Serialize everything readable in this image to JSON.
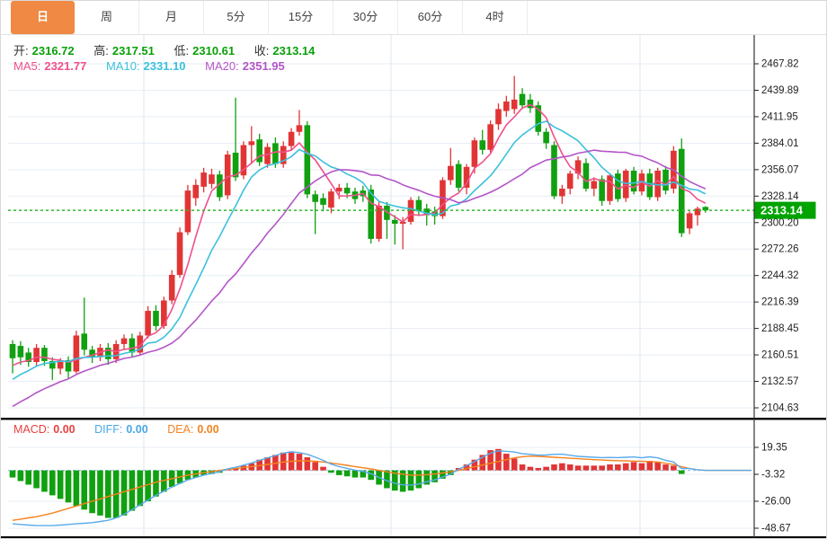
{
  "tabs": [
    {
      "label": "日",
      "active": true
    },
    {
      "label": "周",
      "active": false
    },
    {
      "label": "月",
      "active": false
    },
    {
      "label": "5分",
      "active": false
    },
    {
      "label": "15分",
      "active": false
    },
    {
      "label": "30分",
      "active": false
    },
    {
      "label": "60分",
      "active": false
    },
    {
      "label": "4时",
      "active": false
    }
  ],
  "legend": {
    "ohlc": {
      "label_color": "#333333",
      "value_color": "#0aa00a",
      "items": [
        {
          "label": "开:",
          "value": "2316.72"
        },
        {
          "label": "高:",
          "value": "2317.51"
        },
        {
          "label": "低:",
          "value": "2310.61"
        },
        {
          "label": "收:",
          "value": "2313.14"
        }
      ]
    },
    "ma": {
      "items": [
        {
          "label": "MA5:",
          "value": "2321.77",
          "color": "#f0508c"
        },
        {
          "label": "MA10:",
          "value": "2331.10",
          "color": "#3bc0dd"
        },
        {
          "label": "MA20:",
          "value": "2351.95",
          "color": "#b455c8"
        }
      ]
    },
    "macd": {
      "items": [
        {
          "label": "MACD:",
          "value": "0.00",
          "color": "#e84040"
        },
        {
          "label": "DIFF:",
          "value": "0.00",
          "color": "#4aa8e8"
        },
        {
          "label": "DEA:",
          "value": "0.00",
          "color": "#f5821f"
        }
      ]
    }
  },
  "colors": {
    "up": "#e13535",
    "down": "#10a010",
    "ma5": "#f0508c",
    "ma10": "#3bc0dd",
    "ma20": "#b455c8",
    "diff": "#5aabea",
    "dea": "#f5821f",
    "grid": "#e7edf4",
    "grid_vertical": "#dde7f0",
    "axis_text": "#222222",
    "axis_line": "#333333",
    "separator": "#000000",
    "price_line": "#2eb82e",
    "price_tag_bg": "#00a300",
    "price_tag_text": "#ffffff",
    "macd_zero_line": "#93c9ec",
    "tab_active_bg": "#ef8944"
  },
  "chart_data": {
    "type": "candlestick",
    "timeframe": "日",
    "title": "",
    "price_axis_ticks": [
      "2467.82",
      "2439.89",
      "2411.95",
      "2384.01",
      "2356.07",
      "2328.14",
      "2300.20",
      "2272.26",
      "2244.32",
      "2216.39",
      "2188.45",
      "2160.51",
      "2132.57",
      "2104.63"
    ],
    "macd_axis_ticks": [
      "19.35",
      "-3.32",
      "-26.00",
      "-48.67"
    ],
    "last_price": "2313.14",
    "ohlc_current": {
      "open": 2316.72,
      "high": 2317.51,
      "low": 2310.61,
      "close": 2313.14
    },
    "ma_values_current": {
      "MA5": 2321.77,
      "MA10": 2331.1,
      "MA20": 2351.95
    },
    "macd_values_current": {
      "MACD": 0.0,
      "DIFF": 0.0,
      "DEA": 0.0
    },
    "ma_periods": [
      5,
      10,
      20
    ],
    "ma_warmup_closes": [
      2060,
      2063,
      2066,
      2070,
      2074,
      2078,
      2083,
      2088,
      2094,
      2100,
      2106,
      2113,
      2120,
      2127,
      2134,
      2140,
      2146,
      2150,
      2154
    ],
    "candles": [
      [
        2172,
        2176,
        2141,
        2157
      ],
      [
        2170,
        2175,
        2150,
        2158
      ],
      [
        2163,
        2168,
        2148,
        2153
      ],
      [
        2153,
        2172,
        2149,
        2168
      ],
      [
        2168,
        2171,
        2149,
        2154
      ],
      [
        2154,
        2158,
        2134,
        2146
      ],
      [
        2146,
        2157,
        2140,
        2153
      ],
      [
        2155,
        2159,
        2136,
        2143
      ],
      [
        2143,
        2186,
        2141,
        2181
      ],
      [
        2183,
        2221,
        2160,
        2166
      ],
      [
        2166,
        2170,
        2152,
        2158
      ],
      [
        2158,
        2172,
        2154,
        2168
      ],
      [
        2168,
        2173,
        2150,
        2156
      ],
      [
        2156,
        2176,
        2152,
        2172
      ],
      [
        2172,
        2182,
        2166,
        2178
      ],
      [
        2178,
        2183,
        2158,
        2163
      ],
      [
        2163,
        2185,
        2160,
        2181
      ],
      [
        2181,
        2212,
        2178,
        2207
      ],
      [
        2207,
        2213,
        2186,
        2191
      ],
      [
        2191,
        2222,
        2188,
        2218
      ],
      [
        2218,
        2250,
        2214,
        2245
      ],
      [
        2245,
        2295,
        2242,
        2290
      ],
      [
        2290,
        2340,
        2287,
        2334
      ],
      [
        2326,
        2346,
        2318,
        2340
      ],
      [
        2338,
        2358,
        2332,
        2353
      ],
      [
        2341,
        2357,
        2336,
        2351
      ],
      [
        2351,
        2355,
        2323,
        2327
      ],
      [
        2329,
        2376,
        2325,
        2372
      ],
      [
        2374,
        2432,
        2344,
        2348
      ],
      [
        2350,
        2386,
        2346,
        2382
      ],
      [
        2382,
        2402,
        2362,
        2386
      ],
      [
        2388,
        2394,
        2360,
        2364
      ],
      [
        2362,
        2384,
        2358,
        2380
      ],
      [
        2384,
        2390,
        2358,
        2362
      ],
      [
        2362,
        2386,
        2358,
        2381
      ],
      [
        2381,
        2400,
        2377,
        2396
      ],
      [
        2396,
        2419,
        2392,
        2403
      ],
      [
        2403,
        2407,
        2326,
        2330
      ],
      [
        2330,
        2334,
        2288,
        2322
      ],
      [
        2326,
        2331,
        2312,
        2319
      ],
      [
        2316,
        2336,
        2310,
        2333
      ],
      [
        2333,
        2341,
        2325,
        2337
      ],
      [
        2337,
        2342,
        2326,
        2331
      ],
      [
        2333,
        2337,
        2320,
        2325
      ],
      [
        2334,
        2339,
        2322,
        2328
      ],
      [
        2335,
        2340,
        2278,
        2283
      ],
      [
        2283,
        2322,
        2280,
        2318
      ],
      [
        2318,
        2322,
        2283,
        2303
      ],
      [
        2303,
        2308,
        2277,
        2299
      ],
      [
        2299,
        2306,
        2272,
        2301
      ],
      [
        2301,
        2327,
        2298,
        2324
      ],
      [
        2324,
        2328,
        2308,
        2312
      ],
      [
        2315,
        2320,
        2297,
        2308
      ],
      [
        2312,
        2317,
        2298,
        2307
      ],
      [
        2307,
        2348,
        2304,
        2345
      ],
      [
        2345,
        2379,
        2340,
        2360
      ],
      [
        2362,
        2366,
        2333,
        2337
      ],
      [
        2337,
        2362,
        2330,
        2359
      ],
      [
        2359,
        2390,
        2352,
        2387
      ],
      [
        2387,
        2398,
        2372,
        2377
      ],
      [
        2377,
        2408,
        2374,
        2404
      ],
      [
        2404,
        2426,
        2398,
        2420
      ],
      [
        2418,
        2434,
        2412,
        2428
      ],
      [
        2420,
        2455,
        2415,
        2430
      ],
      [
        2436,
        2442,
        2420,
        2424
      ],
      [
        2430,
        2436,
        2416,
        2421
      ],
      [
        2424,
        2428,
        2392,
        2396
      ],
      [
        2396,
        2400,
        2378,
        2384
      ],
      [
        2382,
        2386,
        2325,
        2328
      ],
      [
        2328,
        2340,
        2320,
        2336
      ],
      [
        2336,
        2355,
        2330,
        2352
      ],
      [
        2352,
        2370,
        2346,
        2366
      ],
      [
        2363,
        2368,
        2333,
        2336
      ],
      [
        2336,
        2348,
        2328,
        2344
      ],
      [
        2346,
        2350,
        2318,
        2323
      ],
      [
        2323,
        2352,
        2319,
        2350
      ],
      [
        2352,
        2356,
        2322,
        2325
      ],
      [
        2326,
        2357,
        2322,
        2355
      ],
      [
        2355,
        2359,
        2330,
        2333
      ],
      [
        2333,
        2356,
        2329,
        2352
      ],
      [
        2352,
        2357,
        2324,
        2327
      ],
      [
        2327,
        2358,
        2323,
        2355
      ],
      [
        2356,
        2360,
        2330,
        2334
      ],
      [
        2336,
        2381,
        2331,
        2376
      ],
      [
        2378,
        2389,
        2285,
        2289
      ],
      [
        2294,
        2312,
        2288,
        2310
      ],
      [
        2308,
        2317,
        2297,
        2315
      ],
      [
        2316.72,
        2317.51,
        2310.61,
        2313.14
      ]
    ],
    "macd": {
      "dea": [
        -42,
        -41,
        -40,
        -39,
        -37.5,
        -36,
        -34,
        -32,
        -30,
        -28,
        -26,
        -24,
        -22,
        -20,
        -18,
        -16,
        -14,
        -12,
        -10,
        -8.5,
        -7,
        -5.5,
        -4,
        -3,
        -2,
        -1,
        0,
        0.8,
        1.6,
        2.4,
        3.2,
        4,
        5,
        6,
        7,
        7.6,
        8,
        8,
        7.6,
        7,
        6.2,
        5.2,
        4.2,
        3.2,
        2.2,
        1.2,
        0,
        -1.2,
        -2.4,
        -3.2,
        -4,
        -4,
        -3.6,
        -3,
        -2.2,
        -1.2,
        0,
        1.5,
        3,
        4.5,
        6,
        7.5,
        9,
        10.5,
        11.5,
        12,
        11.8,
        11.4,
        11,
        10.6,
        10.2,
        9.8,
        9.4,
        9,
        8.7,
        8.4,
        8.2,
        8,
        7.8,
        7.6,
        7.4,
        7,
        6,
        5,
        3,
        1.5,
        0.5,
        0
      ],
      "hist": [
        -6,
        -9,
        -12,
        -15,
        -18,
        -21,
        -24,
        -27,
        -30,
        -33,
        -36,
        -38,
        -40,
        -40,
        -38,
        -34,
        -30,
        -26,
        -22,
        -18,
        -14,
        -11,
        -8,
        -6,
        -4,
        -3,
        -2,
        1,
        2,
        4,
        6,
        9,
        11,
        13,
        15,
        16,
        14,
        11,
        7,
        3,
        -2,
        -4,
        -5,
        -6,
        -6,
        -8,
        -12,
        -15,
        -17,
        -18,
        -17,
        -15,
        -12,
        -10,
        -7,
        -4,
        2,
        5,
        9,
        13,
        17,
        18,
        14,
        10,
        5,
        3,
        2,
        3,
        5,
        6,
        5,
        4,
        4,
        4,
        4,
        5,
        5,
        6,
        7,
        6,
        8,
        7,
        5,
        4,
        -3,
        0,
        0,
        0
      ]
    }
  }
}
